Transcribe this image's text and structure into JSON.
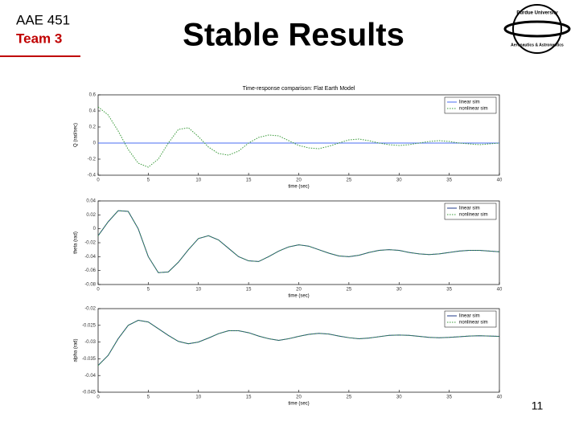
{
  "header": {
    "course": "AAE 451",
    "team": "Team 3",
    "title": "Stable Results",
    "logo_top": "Purdue University",
    "logo_bottom": "Aeronautics & Astronautics",
    "page_number": "11"
  },
  "chart_data": [
    {
      "type": "line",
      "title": "Time-response comparison: Flat Earth Model",
      "xlabel": "time (sec)",
      "ylabel": "Q (rad/sec)",
      "x": [
        0,
        1,
        2,
        3,
        4,
        5,
        6,
        7,
        8,
        9,
        10,
        11,
        12,
        13,
        14,
        15,
        16,
        17,
        18,
        19,
        20,
        21,
        22,
        23,
        24,
        25,
        26,
        27,
        28,
        29,
        30,
        31,
        32,
        33,
        34,
        35,
        36,
        37,
        38,
        39,
        40
      ],
      "xlim": [
        0,
        40
      ],
      "xticks": [
        0,
        5,
        10,
        15,
        20,
        25,
        30,
        35,
        40
      ],
      "ylim": [
        -0.4,
        0.6
      ],
      "yticks": [
        -0.4,
        -0.2,
        0,
        0.2,
        0.4,
        0.6
      ],
      "grid": false,
      "legend": "upper right",
      "series": [
        {
          "name": "linear sim",
          "color": "#4a6cf0",
          "style": "solid",
          "values": [
            0,
            0,
            0,
            0,
            0,
            0,
            0,
            0,
            0,
            0,
            0,
            0,
            0,
            0,
            0,
            0,
            0,
            0,
            0,
            0,
            0,
            0,
            0,
            0,
            0,
            0,
            0,
            0,
            0,
            0,
            0,
            0,
            0,
            0,
            0,
            0,
            0,
            0,
            0,
            0,
            0
          ]
        },
        {
          "name": "nonlinear sim",
          "color": "#3a9a3a",
          "style": "dotted",
          "values": [
            0.45,
            0.35,
            0.15,
            -0.08,
            -0.25,
            -0.3,
            -0.2,
            0.0,
            0.17,
            0.19,
            0.08,
            -0.05,
            -0.13,
            -0.15,
            -0.1,
            0.0,
            0.07,
            0.1,
            0.09,
            0.03,
            -0.03,
            -0.06,
            -0.07,
            -0.04,
            0.0,
            0.04,
            0.05,
            0.03,
            0.0,
            -0.02,
            -0.03,
            -0.02,
            0.0,
            0.02,
            0.03,
            0.02,
            0.0,
            -0.01,
            -0.02,
            -0.01,
            0.0
          ]
        }
      ]
    },
    {
      "type": "line",
      "xlabel": "time (sec)",
      "ylabel": "theta (rad)",
      "x": [
        0,
        1,
        2,
        3,
        4,
        5,
        6,
        7,
        8,
        9,
        10,
        11,
        12,
        13,
        14,
        15,
        16,
        17,
        18,
        19,
        20,
        21,
        22,
        23,
        24,
        25,
        26,
        27,
        28,
        29,
        30,
        31,
        32,
        33,
        34,
        35,
        36,
        37,
        38,
        39,
        40
      ],
      "xlim": [
        0,
        40
      ],
      "xticks": [
        0,
        5,
        10,
        15,
        20,
        25,
        30,
        35,
        40
      ],
      "ylim": [
        -0.08,
        0.04
      ],
      "yticks": [
        -0.08,
        -0.06,
        -0.04,
        -0.02,
        0,
        0.02,
        0.04
      ],
      "grid": false,
      "legend": "upper right",
      "series": [
        {
          "name": "linear sim",
          "color": "#1f3a8a",
          "style": "solid",
          "values": [
            -0.01,
            0.01,
            0.026,
            0.025,
            0.0,
            -0.04,
            -0.063,
            -0.062,
            -0.048,
            -0.03,
            -0.014,
            -0.01,
            -0.016,
            -0.028,
            -0.04,
            -0.046,
            -0.047,
            -0.04,
            -0.032,
            -0.026,
            -0.023,
            -0.025,
            -0.03,
            -0.035,
            -0.039,
            -0.04,
            -0.038,
            -0.034,
            -0.031,
            -0.03,
            -0.031,
            -0.034,
            -0.036,
            -0.037,
            -0.036,
            -0.034,
            -0.032,
            -0.031,
            -0.031,
            -0.032,
            -0.033
          ]
        },
        {
          "name": "nonlinear sim",
          "color": "#3a9a3a",
          "style": "dotted",
          "values": [
            -0.01,
            0.01,
            0.026,
            0.025,
            0.0,
            -0.04,
            -0.063,
            -0.062,
            -0.048,
            -0.03,
            -0.014,
            -0.01,
            -0.016,
            -0.028,
            -0.04,
            -0.046,
            -0.047,
            -0.04,
            -0.032,
            -0.026,
            -0.023,
            -0.025,
            -0.03,
            -0.035,
            -0.039,
            -0.04,
            -0.038,
            -0.034,
            -0.031,
            -0.03,
            -0.031,
            -0.034,
            -0.036,
            -0.037,
            -0.036,
            -0.034,
            -0.032,
            -0.031,
            -0.031,
            -0.032,
            -0.033
          ]
        }
      ]
    },
    {
      "type": "line",
      "xlabel": "time (sec)",
      "ylabel": "alpha (rad)",
      "x": [
        0,
        1,
        2,
        3,
        4,
        5,
        6,
        7,
        8,
        9,
        10,
        11,
        12,
        13,
        14,
        15,
        16,
        17,
        18,
        19,
        20,
        21,
        22,
        23,
        24,
        25,
        26,
        27,
        28,
        29,
        30,
        31,
        32,
        33,
        34,
        35,
        36,
        37,
        38,
        39,
        40
      ],
      "xlim": [
        0,
        40
      ],
      "xticks": [
        0,
        5,
        10,
        15,
        20,
        25,
        30,
        35,
        40
      ],
      "ylim": [
        -0.045,
        -0.02
      ],
      "yticks": [
        -0.045,
        -0.04,
        -0.035,
        -0.03,
        -0.025,
        -0.02
      ],
      "grid": false,
      "legend": "upper right",
      "series": [
        {
          "name": "linear sim",
          "color": "#1f3a8a",
          "style": "solid",
          "values": [
            -0.037,
            -0.034,
            -0.029,
            -0.025,
            -0.0235,
            -0.024,
            -0.026,
            -0.028,
            -0.0298,
            -0.0305,
            -0.03,
            -0.0288,
            -0.0275,
            -0.0266,
            -0.0266,
            -0.0272,
            -0.0282,
            -0.029,
            -0.0295,
            -0.029,
            -0.0283,
            -0.0277,
            -0.0274,
            -0.0276,
            -0.0282,
            -0.0287,
            -0.029,
            -0.0288,
            -0.0284,
            -0.028,
            -0.0279,
            -0.028,
            -0.0283,
            -0.0286,
            -0.0287,
            -0.0286,
            -0.0284,
            -0.0282,
            -0.0281,
            -0.0282,
            -0.0283
          ]
        },
        {
          "name": "nonlinear sim",
          "color": "#3a9a3a",
          "style": "dotted",
          "values": [
            -0.037,
            -0.034,
            -0.029,
            -0.025,
            -0.0235,
            -0.024,
            -0.026,
            -0.028,
            -0.0298,
            -0.0305,
            -0.03,
            -0.0288,
            -0.0275,
            -0.0266,
            -0.0266,
            -0.0272,
            -0.0282,
            -0.029,
            -0.0295,
            -0.029,
            -0.0283,
            -0.0277,
            -0.0274,
            -0.0276,
            -0.0282,
            -0.0287,
            -0.029,
            -0.0288,
            -0.0284,
            -0.028,
            -0.0279,
            -0.028,
            -0.0283,
            -0.0286,
            -0.0287,
            -0.0286,
            -0.0284,
            -0.0282,
            -0.0281,
            -0.0282,
            -0.0283
          ]
        }
      ]
    }
  ]
}
